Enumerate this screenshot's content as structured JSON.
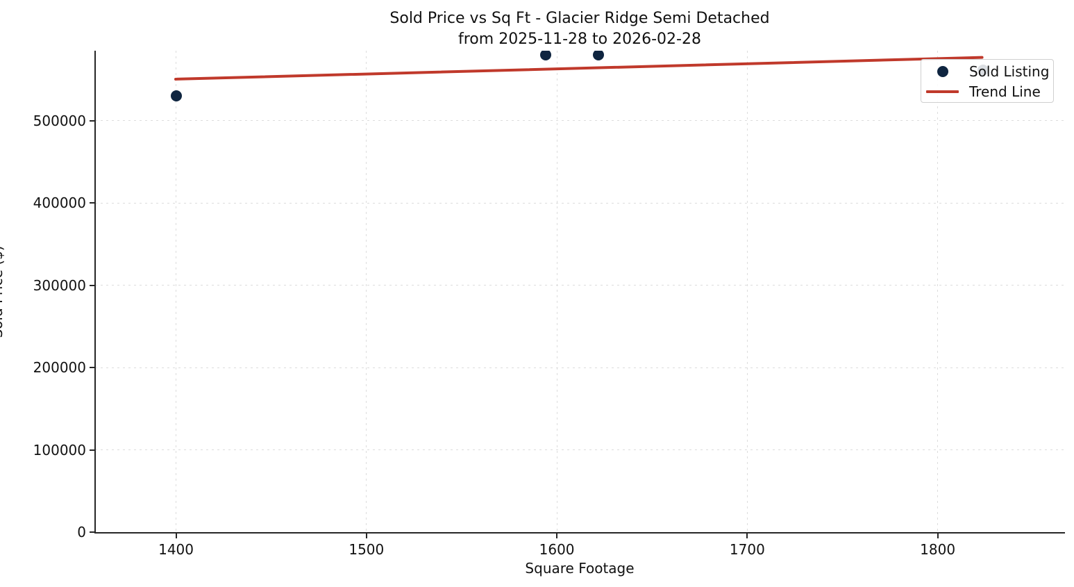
{
  "chart_data": {
    "type": "scatter",
    "title_lines": [
      "Sold Price vs Sq Ft - Glacier Ridge Semi Detached",
      "from 2025-11-28 to 2026-02-28"
    ],
    "xlabel": "Square Footage",
    "ylabel": "Sold Price ($)",
    "xlim": [
      1357.5,
      1866.5
    ],
    "ylim": [
      0,
      585000
    ],
    "x_ticks": [
      1400,
      1500,
      1600,
      1700,
      1800
    ],
    "y_ticks": [
      0,
      100000,
      200000,
      300000,
      400000,
      500000
    ],
    "grid": {
      "visible": true,
      "style": "dashed",
      "color": "#dcdcdc"
    },
    "background_color": "#ffffff",
    "spine_color": "#262626",
    "series": [
      {
        "name": "Sold Listing",
        "kind": "scatter",
        "color": "#0f2540",
        "marker": "circle",
        "points": [
          {
            "sqft": 1400,
            "price": 530000
          },
          {
            "sqft": 1594,
            "price": 580000
          },
          {
            "sqft": 1622,
            "price": 580000
          },
          {
            "sqft": 1824,
            "price": 561000
          }
        ]
      },
      {
        "name": "Trend Line",
        "kind": "line",
        "color": "#c0392b",
        "points": [
          {
            "sqft": 1399,
            "price": 550000
          },
          {
            "sqft": 1824,
            "price": 576500
          }
        ]
      }
    ],
    "legend": {
      "position": "upper-right",
      "entries": [
        {
          "label": "Sold Listing",
          "marker": "circle",
          "color": "#0f2540"
        },
        {
          "label": "Trend Line",
          "marker": "line",
          "color": "#c0392b"
        }
      ]
    }
  }
}
